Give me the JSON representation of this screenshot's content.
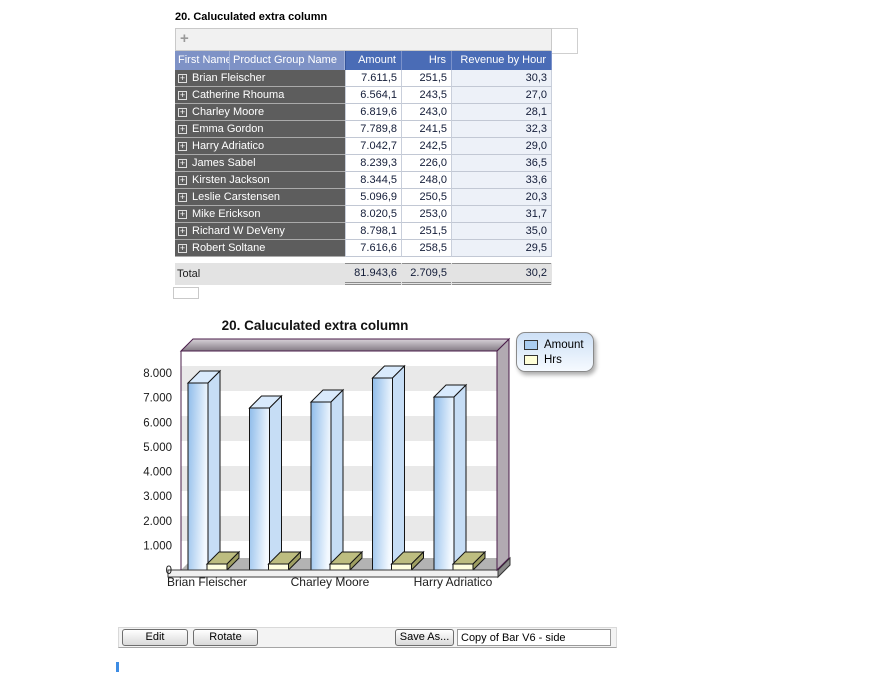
{
  "report": {
    "title": "20. Caluculated extra column",
    "toolbar": {
      "add_icon": "+"
    }
  },
  "table": {
    "columns": [
      "First Name",
      "Product Group Name",
      "Amount",
      "Hrs",
      "Revenue by Hour"
    ],
    "expand_icon": "+",
    "rows": [
      {
        "name": "Brian Fleischer",
        "amount": "7.611,5",
        "hrs": "251,5",
        "revenue_by_hour": "30,3"
      },
      {
        "name": "Catherine Rhouma",
        "amount": "6.564,1",
        "hrs": "243,5",
        "revenue_by_hour": "27,0"
      },
      {
        "name": "Charley Moore",
        "amount": "6.819,6",
        "hrs": "243,0",
        "revenue_by_hour": "28,1"
      },
      {
        "name": "Emma Gordon",
        "amount": "7.789,8",
        "hrs": "241,5",
        "revenue_by_hour": "32,3"
      },
      {
        "name": "Harry Adriatico",
        "amount": "7.042,7",
        "hrs": "242,5",
        "revenue_by_hour": "29,0"
      },
      {
        "name": "James Sabel",
        "amount": "8.239,3",
        "hrs": "226,0",
        "revenue_by_hour": "36,5"
      },
      {
        "name": "Kirsten Jackson",
        "amount": "8.344,5",
        "hrs": "248,0",
        "revenue_by_hour": "33,6"
      },
      {
        "name": "Leslie Carstensen",
        "amount": "5.096,9",
        "hrs": "250,5",
        "revenue_by_hour": "20,3"
      },
      {
        "name": "Mike Erickson",
        "amount": "8.020,5",
        "hrs": "253,0",
        "revenue_by_hour": "31,7"
      },
      {
        "name": "Richard W DeVeny",
        "amount": "8.798,1",
        "hrs": "251,5",
        "revenue_by_hour": "35,0"
      },
      {
        "name": "Robert Soltane",
        "amount": "7.616,6",
        "hrs": "258,5",
        "revenue_by_hour": "29,5"
      }
    ],
    "total": {
      "label": "Total",
      "amount": "81.943,6",
      "hrs": "2.709,5",
      "revenue_by_hour": "30,2"
    }
  },
  "chart_data": {
    "type": "bar",
    "style": "3d-side",
    "title": "20. Caluculated extra column",
    "categories": [
      "Brian Fleischer",
      "Catherine Rhouma",
      "Charley Moore",
      "Emma Gordon",
      "Harry Adriatico"
    ],
    "x_tick_labels": [
      "Brian Fleischer",
      "Charley Moore",
      "Harry Adriatico"
    ],
    "x_tick_group_indices": [
      0,
      2,
      4
    ],
    "series": [
      {
        "name": "Amount",
        "color": "#a9ccf0",
        "values": [
          7611.5,
          6564.1,
          6819.6,
          7789.8,
          7042.7
        ]
      },
      {
        "name": "Hrs",
        "color": "#ffffd8",
        "values": [
          251.5,
          243.5,
          243.0,
          241.5,
          242.5
        ]
      }
    ],
    "ylim": [
      0,
      8000
    ],
    "y_tick_step": 1000,
    "y_ticks": [
      "0",
      "1.000",
      "2.000",
      "3.000",
      "4.000",
      "5.000",
      "6.000",
      "7.000",
      "8.000"
    ],
    "grid": "striped-bands",
    "legend_position": "top-right"
  },
  "controls": {
    "edit": "Edit",
    "rotate": "Rotate",
    "save_as": "Save As...",
    "chart_name_value": "Copy of Bar V6 - side"
  },
  "colors": {
    "header_light": "#7e92c6",
    "header_dark": "#4a6cb6",
    "row_label_bg": "#5d5d5d",
    "revenue_col_bg": "#edf1f8",
    "amount_bar": "#a9ccf0",
    "hrs_bar": "#ffffd8",
    "frame_purple": "#4a1c4a",
    "cursor_blue": "#3d8ce4"
  }
}
